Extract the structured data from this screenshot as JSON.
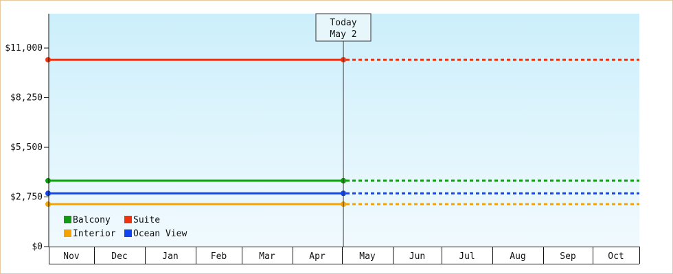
{
  "chart_data": {
    "type": "line",
    "title": "",
    "xlabel": "",
    "ylabel": "",
    "categories": [
      "Nov",
      "Dec",
      "Jan",
      "Feb",
      "Mar",
      "Apr",
      "May",
      "Jun",
      "Jul",
      "Aug",
      "Sep",
      "Oct"
    ],
    "y_ticks": [
      "$0",
      "$2,750",
      "$5,500",
      "$8,250",
      "$11,000"
    ],
    "y_tick_values": [
      0,
      2750,
      5500,
      8250,
      11000
    ],
    "ylim": [
      0,
      12900
    ],
    "today": {
      "line1": "Today",
      "line2": "May 2"
    },
    "grid": false,
    "legend_placement": "bottom-left",
    "background": {
      "top": "#cceffb",
      "bottom": "#f1fafe"
    },
    "series": [
      {
        "name": "Suite",
        "value": 10350,
        "color": "#ee3311"
      },
      {
        "name": "Balcony",
        "value": 3650,
        "color": "#119911"
      },
      {
        "name": "Ocean View",
        "value": 2950,
        "color": "#1144ee"
      },
      {
        "name": "Interior",
        "value": 2350,
        "color": "#f5a300"
      }
    ],
    "legend_rows": [
      [
        "Balcony",
        "Suite"
      ],
      [
        "Interior",
        "Ocean View"
      ]
    ]
  }
}
